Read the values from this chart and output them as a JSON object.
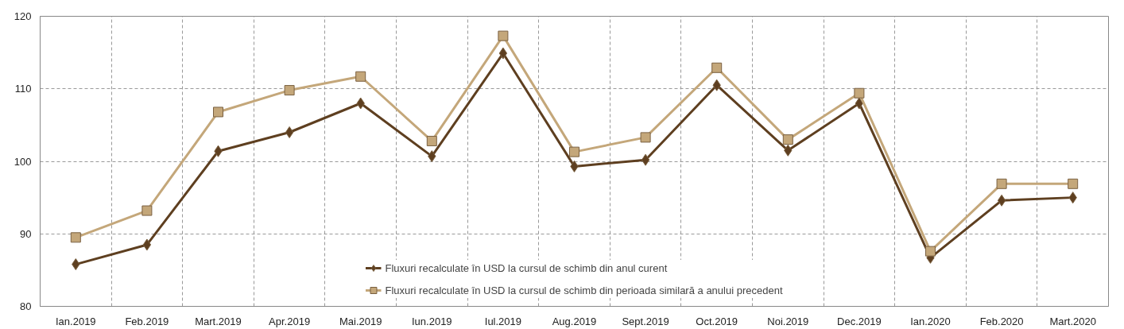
{
  "chart_data": {
    "type": "line",
    "categories": [
      "Ian.2019",
      "Feb.2019",
      "Mart.2019",
      "Apr.2019",
      "Mai.2019",
      "Iun.2019",
      "Iul.2019",
      "Aug.2019",
      "Sept.2019",
      "Oct.2019",
      "Noi.2019",
      "Dec.2019",
      "Ian.2020",
      "Feb.2020",
      "Mart.2020"
    ],
    "series": [
      {
        "name": "Fluxuri recalculate în USD la cursul de schimb din anul curent",
        "color": "#5e3f20",
        "marker": "diamond",
        "values": [
          85.8,
          88.5,
          101.4,
          104.0,
          108.0,
          100.7,
          114.9,
          99.3,
          100.2,
          110.5,
          101.5,
          108.0,
          86.7,
          94.6,
          95.0
        ]
      },
      {
        "name": "Fluxuri recalculate în USD la cursul de schimb din perioada similară a anului precedent",
        "color": "#c4a77a",
        "marker": "square",
        "values": [
          89.5,
          93.2,
          106.8,
          109.8,
          111.7,
          102.8,
          117.3,
          101.3,
          103.3,
          112.9,
          103.0,
          109.4,
          87.6,
          96.9,
          96.9
        ]
      }
    ],
    "ylim": [
      80,
      120
    ],
    "yticks": [
      80,
      90,
      100,
      110,
      120
    ],
    "grid": true,
    "legend": "bottom",
    "line_style": "solid"
  }
}
